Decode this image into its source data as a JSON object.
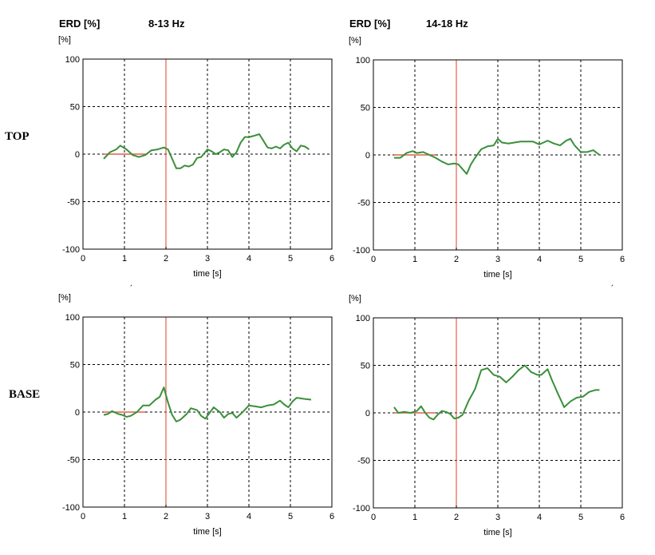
{
  "header": {
    "left": {
      "label": "ERD [%]",
      "band": "8-13 Hz"
    },
    "right": {
      "label": "ERD [%]",
      "band": "14-18 Hz"
    }
  },
  "rows": {
    "top": "TOP",
    "base": "BASE"
  },
  "stray_marks": [
    "´",
    "´"
  ],
  "colors": {
    "signal": "#3a8f3a",
    "event_marker": "#e2604a",
    "baseline": "#e2604a",
    "grid": "#000000"
  },
  "chart_data": [
    {
      "id": "top-8-13",
      "type": "line",
      "xlabel": "time [s]",
      "ylabel": "[%]",
      "xlim": [
        0,
        6
      ],
      "ylim": [
        -100,
        100
      ],
      "xticks": [
        0,
        1,
        2,
        3,
        4,
        5,
        6
      ],
      "yticks": [
        100,
        50,
        0,
        -50,
        -100
      ],
      "grid": true,
      "event_marker_x": 2,
      "baseline": [
        0.5,
        1.5
      ],
      "series": [
        {
          "x": [
            0.5,
            0.65,
            0.8,
            0.9,
            1.05,
            1.2,
            1.35,
            1.5,
            1.65,
            1.8,
            1.95,
            2.05,
            2.15,
            2.25,
            2.35,
            2.45,
            2.55,
            2.65,
            2.75,
            2.85,
            3.0,
            3.1,
            3.2,
            3.3,
            3.4,
            3.5,
            3.6,
            3.7,
            3.8,
            3.9,
            4.0,
            4.1,
            4.25,
            4.35,
            4.45,
            4.55,
            4.65,
            4.75,
            4.85,
            4.95,
            5.05,
            5.15,
            5.2,
            5.25,
            5.35,
            5.45
          ],
          "y": [
            -5,
            2,
            5,
            9,
            5,
            -1,
            -3,
            -1,
            4,
            5,
            7,
            5,
            -5,
            -15,
            -15,
            -12,
            -13,
            -11,
            -4,
            -3,
            5,
            3,
            0,
            2,
            5,
            4,
            -3,
            2,
            12,
            18,
            18,
            19,
            21,
            14,
            7,
            6,
            8,
            6,
            10,
            12,
            6,
            3,
            6,
            9,
            8,
            5
          ]
        }
      ]
    },
    {
      "id": "top-14-18",
      "type": "line",
      "xlabel": "time [s]",
      "ylabel": "[%]",
      "xlim": [
        0,
        6
      ],
      "ylim": [
        -100,
        100
      ],
      "xticks": [
        0,
        1,
        2,
        3,
        4,
        5,
        6
      ],
      "yticks": [
        100,
        50,
        0,
        -50,
        -100
      ],
      "grid": true,
      "event_marker_x": 2,
      "baseline": [
        0.5,
        1.5
      ],
      "series": [
        {
          "x": [
            0.5,
            0.65,
            0.8,
            0.95,
            1.05,
            1.2,
            1.35,
            1.5,
            1.65,
            1.8,
            1.95,
            2.05,
            2.15,
            2.25,
            2.35,
            2.45,
            2.6,
            2.75,
            2.9,
            3.0,
            3.1,
            3.25,
            3.4,
            3.55,
            3.7,
            3.85,
            4.0,
            4.1,
            4.2,
            4.35,
            4.5,
            4.65,
            4.75,
            4.85,
            5.0,
            5.15,
            5.3,
            5.45
          ],
          "y": [
            -3,
            -3,
            2,
            4,
            2,
            3,
            0,
            -3,
            -7,
            -10,
            -9,
            -10,
            -15,
            -20,
            -10,
            -3,
            6,
            9,
            10,
            17,
            13,
            12,
            13,
            14,
            14,
            14,
            11,
            13,
            15,
            12,
            10,
            15,
            17,
            10,
            3,
            3,
            5,
            0
          ]
        }
      ]
    },
    {
      "id": "base-8-13",
      "type": "line",
      "xlabel": "time [s]",
      "ylabel": "[%]",
      "xlim": [
        0,
        6
      ],
      "ylim": [
        -100,
        100
      ],
      "xticks": [
        0,
        1,
        2,
        3,
        4,
        5,
        6
      ],
      "yticks": [
        100,
        50,
        0,
        -50,
        -100
      ],
      "grid": true,
      "event_marker_x": 2,
      "baseline": [
        0.5,
        1.5
      ],
      "series": [
        {
          "x": [
            0.5,
            0.6,
            0.7,
            0.85,
            0.95,
            1.05,
            1.15,
            1.3,
            1.45,
            1.6,
            1.75,
            1.85,
            1.95,
            2.05,
            2.15,
            2.25,
            2.35,
            2.5,
            2.6,
            2.75,
            2.85,
            2.95,
            3.05,
            3.15,
            3.3,
            3.4,
            3.5,
            3.6,
            3.7,
            3.85,
            4.0,
            4.15,
            4.3,
            4.45,
            4.6,
            4.75,
            4.85,
            4.95,
            5.05,
            5.15,
            5.3,
            5.5
          ],
          "y": [
            -3,
            -2,
            1,
            -2,
            -3,
            -5,
            -4,
            0,
            7,
            7,
            13,
            16,
            26,
            10,
            -3,
            -10,
            -8,
            -2,
            4,
            2,
            -4,
            -7,
            -1,
            5,
            0,
            -6,
            -2,
            -1,
            -6,
            0,
            7,
            6,
            5,
            7,
            8,
            12,
            8,
            5,
            11,
            15,
            14,
            13
          ]
        }
      ]
    },
    {
      "id": "base-14-18",
      "type": "line",
      "xlabel": "time [s]",
      "ylabel": "[%]",
      "xlim": [
        0,
        6
      ],
      "ylim": [
        -100,
        100
      ],
      "xticks": [
        0,
        1,
        2,
        3,
        4,
        5,
        6
      ],
      "yticks": [
        100,
        50,
        0,
        -50,
        -100
      ],
      "grid": true,
      "event_marker_x": 2,
      "baseline": [
        0.5,
        1.5
      ],
      "series": [
        {
          "x": [
            0.5,
            0.6,
            0.75,
            0.9,
            1.05,
            1.15,
            1.25,
            1.35,
            1.45,
            1.55,
            1.65,
            1.75,
            1.85,
            1.95,
            2.05,
            2.15,
            2.3,
            2.45,
            2.6,
            2.75,
            2.9,
            3.05,
            3.2,
            3.35,
            3.5,
            3.65,
            3.8,
            3.95,
            4.05,
            4.2,
            4.3,
            4.45,
            4.6,
            4.75,
            4.9,
            5.05,
            5.2,
            5.35,
            5.45
          ],
          "y": [
            6,
            0,
            1,
            0,
            2,
            7,
            0,
            -5,
            -7,
            -2,
            2,
            1,
            -1,
            -6,
            -5,
            -2,
            13,
            25,
            45,
            47,
            40,
            38,
            32,
            38,
            45,
            50,
            43,
            40,
            40,
            46,
            35,
            20,
            6,
            12,
            16,
            17,
            22,
            24,
            24
          ]
        }
      ]
    }
  ]
}
